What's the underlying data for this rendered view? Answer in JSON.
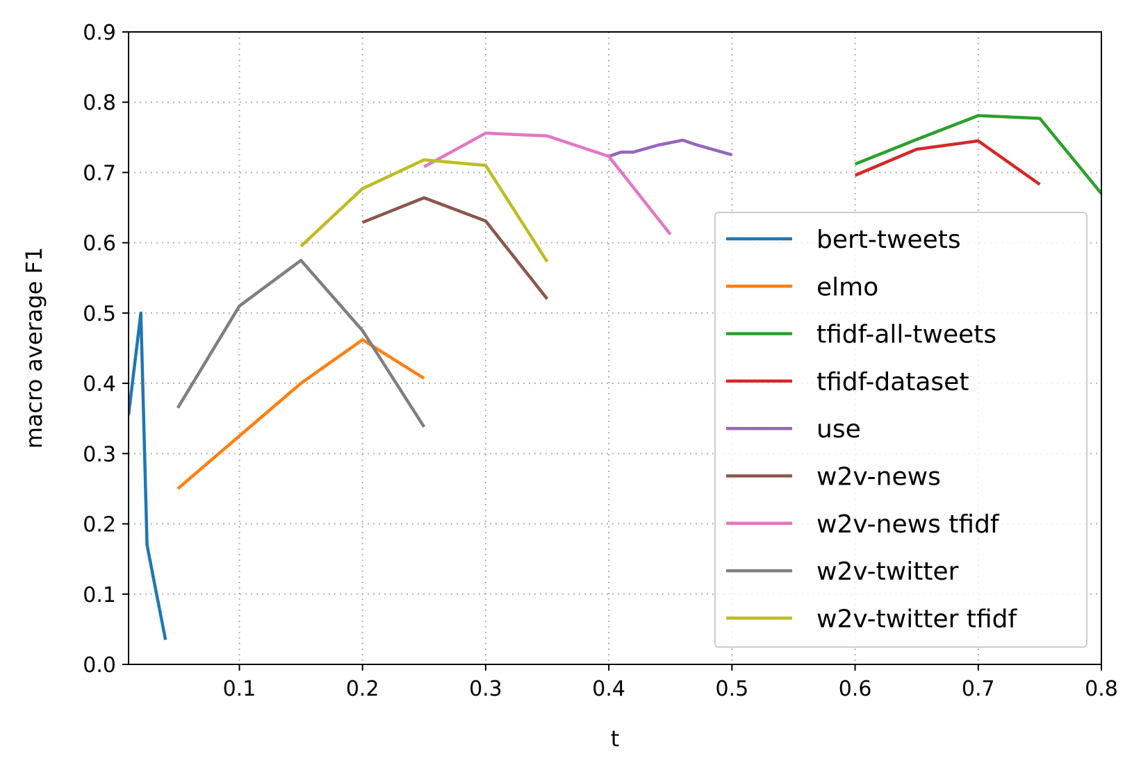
{
  "chart_data": {
    "type": "line",
    "title": "",
    "xlabel": "t",
    "ylabel": "macro average F1",
    "xlim": [
      0.01,
      0.8
    ],
    "ylim": [
      0.0,
      0.9
    ],
    "xticks": [
      "0.1",
      "0.2",
      "0.3",
      "0.4",
      "0.5",
      "0.6",
      "0.7",
      "0.8"
    ],
    "yticks": [
      "0.0",
      "0.1",
      "0.2",
      "0.3",
      "0.4",
      "0.5",
      "0.6",
      "0.7",
      "0.8",
      "0.9"
    ],
    "grid": true,
    "legend_position": "lower-right",
    "series": [
      {
        "name": "bert-tweets",
        "color": "#1f77b4",
        "x": [
          0.01,
          0.02,
          0.025,
          0.03,
          0.04
        ],
        "y": [
          0.355,
          0.5,
          0.17,
          0.125,
          0.035
        ]
      },
      {
        "name": "elmo",
        "color": "#ff7f0e",
        "x": [
          0.05,
          0.1,
          0.15,
          0.2,
          0.25
        ],
        "y": [
          0.25,
          0.325,
          0.4,
          0.462,
          0.407
        ]
      },
      {
        "name": "tfidf-all-tweets",
        "color": "#2ca02c",
        "x": [
          0.6,
          0.65,
          0.7,
          0.75,
          0.8
        ],
        "y": [
          0.712,
          0.747,
          0.781,
          0.777,
          0.67
        ]
      },
      {
        "name": "tfidf-dataset",
        "color": "#d62728",
        "x": [
          0.6,
          0.65,
          0.7,
          0.75
        ],
        "y": [
          0.696,
          0.733,
          0.745,
          0.683
        ]
      },
      {
        "name": "use",
        "color": "#9467bd",
        "x": [
          0.4,
          0.41,
          0.42,
          0.44,
          0.46,
          0.47,
          0.5
        ],
        "y": [
          0.723,
          0.729,
          0.729,
          0.739,
          0.746,
          0.74,
          0.725
        ]
      },
      {
        "name": "w2v-news",
        "color": "#8c564b",
        "x": [
          0.2,
          0.25,
          0.3,
          0.35
        ],
        "y": [
          0.629,
          0.664,
          0.631,
          0.52
        ]
      },
      {
        "name": "w2v-news tfidf",
        "color": "#e377c2",
        "x": [
          0.25,
          0.3,
          0.35,
          0.4,
          0.45
        ],
        "y": [
          0.708,
          0.756,
          0.752,
          0.723,
          0.612
        ]
      },
      {
        "name": "w2v-twitter",
        "color": "#7f7f7f",
        "x": [
          0.05,
          0.1,
          0.15,
          0.2,
          0.25
        ],
        "y": [
          0.365,
          0.51,
          0.575,
          0.475,
          0.338
        ]
      },
      {
        "name": "w2v-twitter tfidf",
        "color": "#bcbd22",
        "x": [
          0.15,
          0.2,
          0.25,
          0.3,
          0.35
        ],
        "y": [
          0.595,
          0.677,
          0.718,
          0.71,
          0.573
        ]
      }
    ]
  }
}
